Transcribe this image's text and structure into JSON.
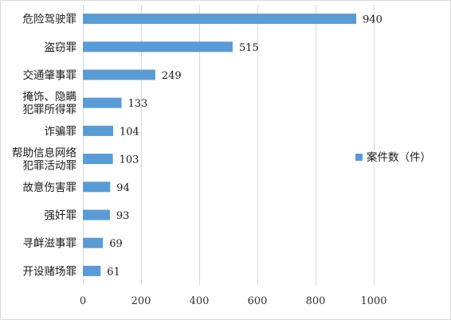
{
  "chart_data": {
    "type": "bar",
    "orientation": "horizontal",
    "categories": [
      "危险驾驶罪",
      "盗窃罪",
      "交通肇事罪",
      "掩饰、隐瞒犯罪所得罪",
      "诈骗罪",
      "帮助信息网络犯罪活动罪",
      "故意伤害罪",
      "强奸罪",
      "寻衅滋事罪",
      "开设赌场罪"
    ],
    "category_lines": [
      [
        "危险驾驶罪"
      ],
      [
        "盗窃罪"
      ],
      [
        "交通肇事罪"
      ],
      [
        "掩饰、隐瞒",
        "犯罪所得罪"
      ],
      [
        "诈骗罪"
      ],
      [
        "帮助信息网络",
        "犯罪活动罪"
      ],
      [
        "故意伤害罪"
      ],
      [
        "强奸罪"
      ],
      [
        "寻衅滋事罪"
      ],
      [
        "开设赌场罪"
      ]
    ],
    "series": [
      {
        "name": "案件数（件）",
        "values": [
          940,
          515,
          249,
          133,
          104,
          103,
          94,
          93,
          69,
          61
        ]
      }
    ],
    "xlim": [
      0,
      1000
    ],
    "xticks": [
      0,
      200,
      400,
      600,
      800,
      1000
    ],
    "grid": "vertical",
    "legend": "right",
    "bar_color": "#5b9bd5",
    "grid_color": "#d9d9d9"
  }
}
